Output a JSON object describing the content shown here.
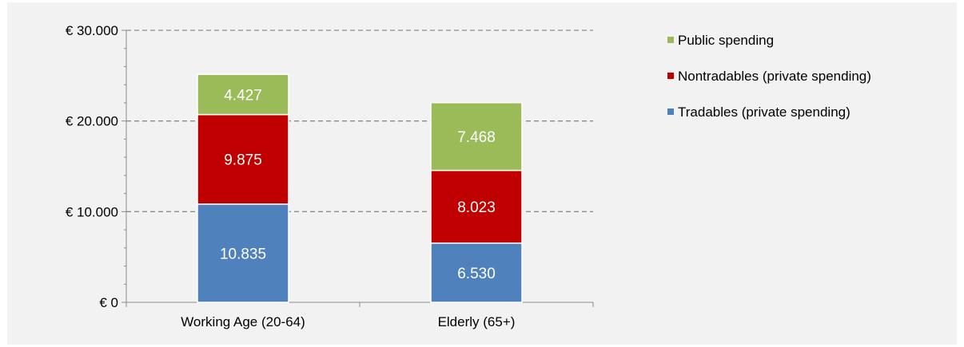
{
  "chart_data": {
    "type": "bar",
    "stacked": true,
    "categories": [
      "Working Age (20-64)",
      "Elderly (65+)"
    ],
    "series": [
      {
        "name": "Tradables (private spending)",
        "values": [
          10835,
          6530
        ],
        "labels": [
          "10.835",
          "6.530"
        ],
        "color": "#4f81bd"
      },
      {
        "name": "Nontradables (private spending)",
        "values": [
          9875,
          8023
        ],
        "labels": [
          "9.875",
          "8.023"
        ],
        "color": "#c00000"
      },
      {
        "name": "Public spending",
        "values": [
          4427,
          7468
        ],
        "labels": [
          "4.427",
          "7.468"
        ],
        "color": "#9bbb59"
      }
    ],
    "yticks": [
      0,
      10000,
      20000,
      30000
    ],
    "ytick_labels": [
      "€ 0",
      "€ 10.000",
      "€ 20.000",
      "€ 30.000"
    ],
    "ylim": [
      0,
      30000
    ],
    "grid": "horizontal dashed",
    "legend_position": "right",
    "legend_order": [
      "Public spending",
      "Nontradables (private spending)",
      "Tradables (private spending)"
    ]
  }
}
